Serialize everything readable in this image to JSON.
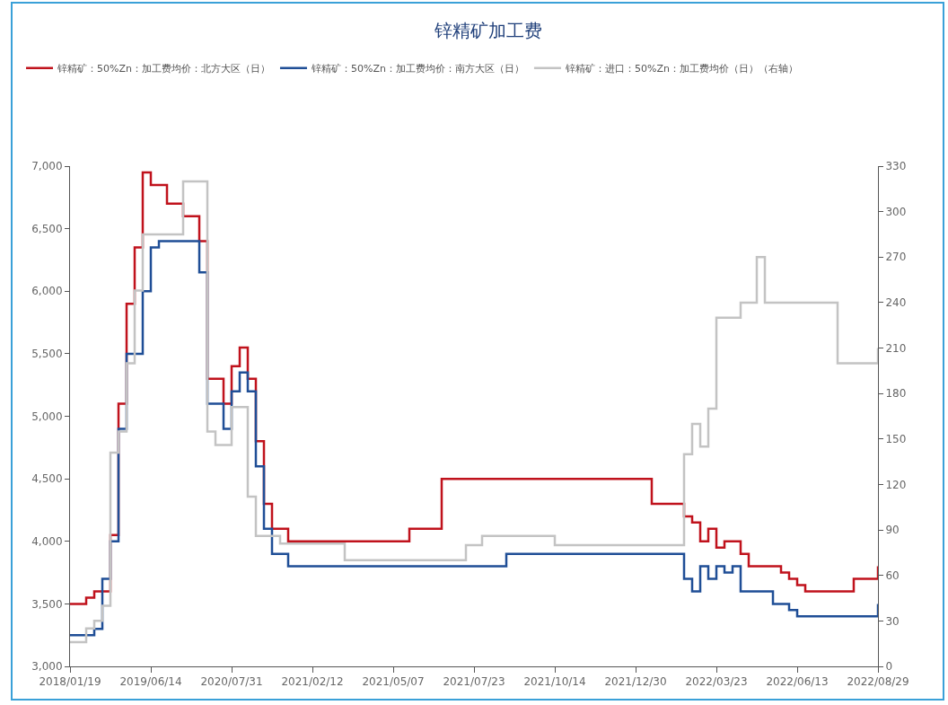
{
  "chart_data": {
    "type": "step",
    "title": "锌精矿加工费",
    "legend": "top left",
    "grid": false,
    "marker": "none",
    "line_style": "solid",
    "categories": [
      "2018/01/19",
      null,
      null,
      null,
      null,
      null,
      null,
      null,
      null,
      null,
      "2019/06/14",
      null,
      null,
      null,
      null,
      null,
      null,
      null,
      null,
      null,
      "2020/07/31",
      null,
      null,
      null,
      null,
      null,
      null,
      null,
      null,
      null,
      "2021/02/12",
      null,
      null,
      null,
      null,
      null,
      null,
      null,
      null,
      null,
      "2021/05/07",
      null,
      null,
      null,
      null,
      null,
      null,
      null,
      null,
      null,
      "2021/07/23",
      null,
      null,
      null,
      null,
      null,
      null,
      null,
      null,
      null,
      "2021/10/14",
      null,
      null,
      null,
      null,
      null,
      null,
      null,
      null,
      null,
      "2021/12/30",
      null,
      null,
      null,
      null,
      null,
      null,
      null,
      null,
      null,
      "2022/03/23",
      null,
      null,
      null,
      null,
      null,
      null,
      null,
      null,
      null,
      "2022/06/13",
      null,
      null,
      null,
      null,
      null,
      null,
      null,
      null,
      null,
      "2022/08/29"
    ],
    "ylim": [
      3000,
      7000
    ],
    "yticks": [
      {
        "value": 3000,
        "label": "3,000"
      },
      {
        "value": 3500,
        "label": "3,500"
      },
      {
        "value": 4000,
        "label": "4,000"
      },
      {
        "value": 4500,
        "label": "4,500"
      },
      {
        "value": 5000,
        "label": "5,000"
      },
      {
        "value": 5500,
        "label": "5,500"
      },
      {
        "value": 6000,
        "label": "6,000"
      },
      {
        "value": 6500,
        "label": "6,500"
      },
      {
        "value": 7000,
        "label": "7,000"
      }
    ],
    "y2lim": [
      0,
      330
    ],
    "y2ticks": [
      0,
      30,
      60,
      90,
      120,
      150,
      180,
      210,
      240,
      270,
      300,
      330
    ],
    "series": [
      {
        "name": "锌精矿：50%Zn：加工费均价：北方大区（日）",
        "color": "#c0121c",
        "values": [
          3500,
          3500,
          3550,
          3600,
          3600,
          4050,
          5100,
          5900,
          6350,
          6950,
          6850,
          6850,
          6700,
          6700,
          6600,
          6600,
          6400,
          5300,
          5300,
          5100,
          5400,
          5550,
          5300,
          4800,
          4300,
          4100,
          4100,
          4000,
          4000,
          4000,
          4000,
          4000,
          4000,
          4000,
          4000,
          4000,
          4000,
          4000,
          4000,
          4000,
          4000,
          4000,
          4100,
          4100,
          4100,
          4100,
          4500,
          4500,
          4500,
          4500,
          4500,
          4500,
          4500,
          4500,
          4500,
          4500,
          4500,
          4500,
          4500,
          4500,
          4500,
          4500,
          4500,
          4500,
          4500,
          4500,
          4500,
          4500,
          4500,
          4500,
          4500,
          4500,
          4300,
          4300,
          4300,
          4300,
          4200,
          4150,
          4000,
          4100,
          3950,
          4000,
          4000,
          3900,
          3800,
          3800,
          3800,
          3800,
          3750,
          3700,
          3650,
          3600,
          3600,
          3600,
          3600,
          3600,
          3600,
          3700,
          3700,
          3700,
          3800
        ]
      },
      {
        "name": "锌精矿：50%Zn：加工费均价：南方大区（日）",
        "color": "#1f4e96",
        "values": [
          3250,
          3250,
          3250,
          3300,
          3700,
          4000,
          4900,
          5500,
          5500,
          6000,
          6350,
          6400,
          6400,
          6400,
          6400,
          6400,
          6150,
          5100,
          5100,
          4900,
          5200,
          5350,
          5200,
          4600,
          4100,
          3900,
          3900,
          3800,
          3800,
          3800,
          3800,
          3800,
          3800,
          3800,
          3800,
          3800,
          3800,
          3800,
          3800,
          3800,
          3800,
          3800,
          3800,
          3800,
          3800,
          3800,
          3800,
          3800,
          3800,
          3800,
          3800,
          3800,
          3800,
          3800,
          3900,
          3900,
          3900,
          3900,
          3900,
          3900,
          3900,
          3900,
          3900,
          3900,
          3900,
          3900,
          3900,
          3900,
          3900,
          3900,
          3900,
          3900,
          3900,
          3900,
          3900,
          3900,
          3700,
          3600,
          3800,
          3700,
          3800,
          3750,
          3800,
          3600,
          3600,
          3600,
          3600,
          3500,
          3500,
          3450,
          3400,
          3400,
          3400,
          3400,
          3400,
          3400,
          3400,
          3400,
          3400,
          3400,
          3500
        ]
      },
      {
        "name": "锌精矿：进口：50%Zn：加工费均价（日）（右轴）",
        "color": "#c3c3c3",
        "axis": "y2",
        "values": [
          16,
          16,
          25,
          30,
          40,
          141,
          155,
          200,
          248,
          285,
          285,
          285,
          285,
          285,
          320,
          320,
          320,
          155,
          146,
          146,
          171,
          171,
          112,
          86,
          86,
          86,
          81,
          81,
          81,
          81,
          81,
          81,
          81,
          81,
          70,
          70,
          70,
          70,
          70,
          70,
          70,
          70,
          70,
          70,
          70,
          70,
          70,
          70,
          70,
          80,
          80,
          86,
          86,
          86,
          86,
          86,
          86,
          86,
          86,
          86,
          80,
          80,
          80,
          80,
          80,
          80,
          80,
          80,
          80,
          80,
          80,
          80,
          80,
          80,
          80,
          80,
          140,
          160,
          145,
          170,
          230,
          230,
          230,
          240,
          240,
          270,
          240,
          240,
          240,
          240,
          240,
          240,
          240,
          240,
          240,
          200,
          200,
          200,
          200,
          200,
          210
        ]
      }
    ]
  }
}
